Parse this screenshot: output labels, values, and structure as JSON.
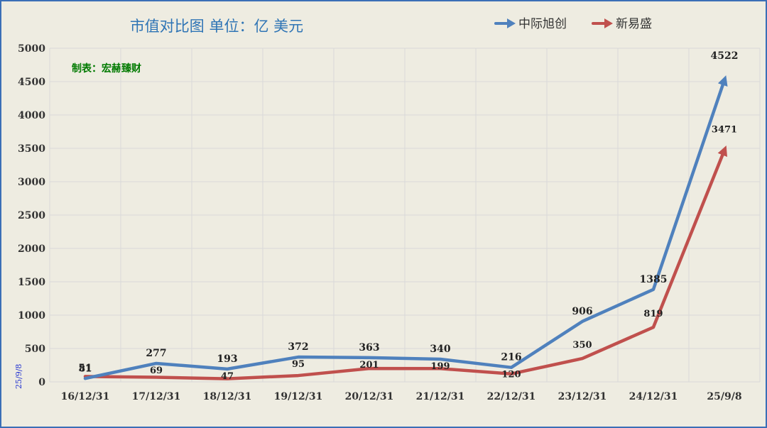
{
  "chart_data": {
    "type": "line",
    "title": "市值对比图  单位：亿 美元",
    "credit": "制表：宏赫臻财",
    "side_note": "25/9/8",
    "categories": [
      "16/12/31",
      "17/12/31",
      "18/12/31",
      "19/12/31",
      "20/12/31",
      "21/12/31",
      "22/12/31",
      "23/12/31",
      "24/12/31",
      "25/9/8"
    ],
    "ylim": [
      0,
      5000
    ],
    "yticks": [
      0,
      500,
      1000,
      1500,
      2000,
      2500,
      3000,
      3500,
      4000,
      4500,
      5000
    ],
    "grid": true,
    "legend_position": "top-right",
    "series": [
      {
        "name": "中际旭创",
        "color": "#4f81bd",
        "values": [
          51,
          277,
          193,
          372,
          363,
          340,
          216,
          906,
          1385,
          4522
        ]
      },
      {
        "name": "新易盛",
        "color": "#c0504d",
        "values": [
          81,
          69,
          47,
          95,
          201,
          199,
          120,
          350,
          819,
          3471
        ]
      }
    ]
  }
}
